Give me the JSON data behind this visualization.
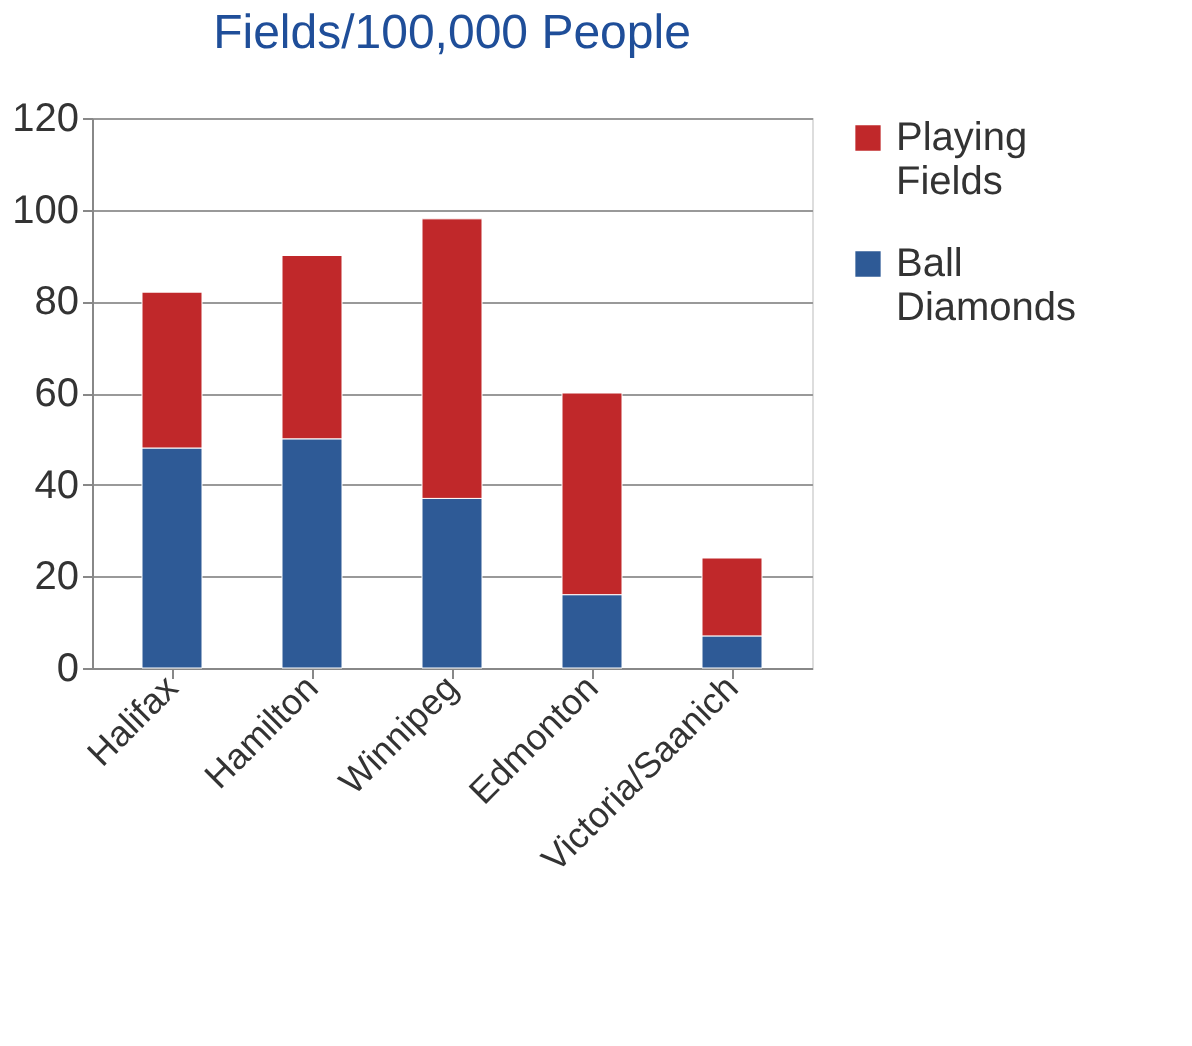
{
  "chart_data": {
    "type": "bar",
    "title": "Fields/100,000 People",
    "stacked": true,
    "categories": [
      "Halifax",
      "Hamilton",
      "Winnipeg",
      "Edmonton",
      "Victoria/Saanich"
    ],
    "series": [
      {
        "name": "Ball Diamonds",
        "color": "#2e5a96",
        "values": [
          48,
          50,
          37,
          16,
          7
        ]
      },
      {
        "name": "Playing Fields",
        "color": "#c0282a",
        "values": [
          34,
          40,
          61,
          44,
          17
        ]
      }
    ],
    "ylim": [
      0,
      120
    ],
    "yticks": [
      0,
      20,
      40,
      60,
      80,
      100,
      120
    ],
    "grid": "y",
    "legend": "right"
  }
}
